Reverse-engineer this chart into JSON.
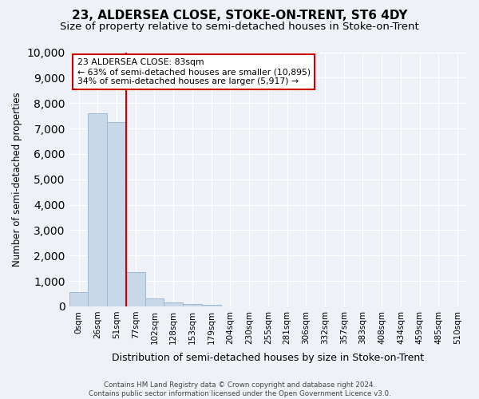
{
  "title": "23, ALDERSEA CLOSE, STOKE-ON-TRENT, ST6 4DY",
  "subtitle": "Size of property relative to semi-detached houses in Stoke-on-Trent",
  "xlabel": "Distribution of semi-detached houses by size in Stoke-on-Trent",
  "ylabel": "Number of semi-detached properties",
  "bin_labels": [
    "0sqm",
    "26sqm",
    "51sqm",
    "77sqm",
    "102sqm",
    "128sqm",
    "153sqm",
    "179sqm",
    "204sqm",
    "230sqm",
    "255sqm",
    "281sqm",
    "306sqm",
    "332sqm",
    "357sqm",
    "383sqm",
    "408sqm",
    "434sqm",
    "459sqm",
    "485sqm",
    "510sqm"
  ],
  "bar_values": [
    550,
    7600,
    7250,
    1350,
    300,
    160,
    100,
    75,
    0,
    0,
    0,
    0,
    0,
    0,
    0,
    0,
    0,
    0,
    0,
    0,
    0
  ],
  "bar_color": "#c8d8e8",
  "bar_edge_color": "#a0b8d0",
  "vline_x": 2.5,
  "vline_color": "#cc0000",
  "ylim": [
    0,
    10000
  ],
  "yticks": [
    0,
    1000,
    2000,
    3000,
    4000,
    5000,
    6000,
    7000,
    8000,
    9000,
    10000
  ],
  "annotation_title": "23 ALDERSEA CLOSE: 83sqm",
  "annotation_line1": "← 63% of semi-detached houses are smaller (10,895)",
  "annotation_line2": "34% of semi-detached houses are larger (5,917) →",
  "annotation_box_color": "#ffffff",
  "annotation_box_edge": "#cc0000",
  "footer_line1": "Contains HM Land Registry data © Crown copyright and database right 2024.",
  "footer_line2": "Contains public sector information licensed under the Open Government Licence v3.0.",
  "background_color": "#eef2f7",
  "grid_color": "#ffffff",
  "title_fontsize": 11,
  "subtitle_fontsize": 9.5
}
